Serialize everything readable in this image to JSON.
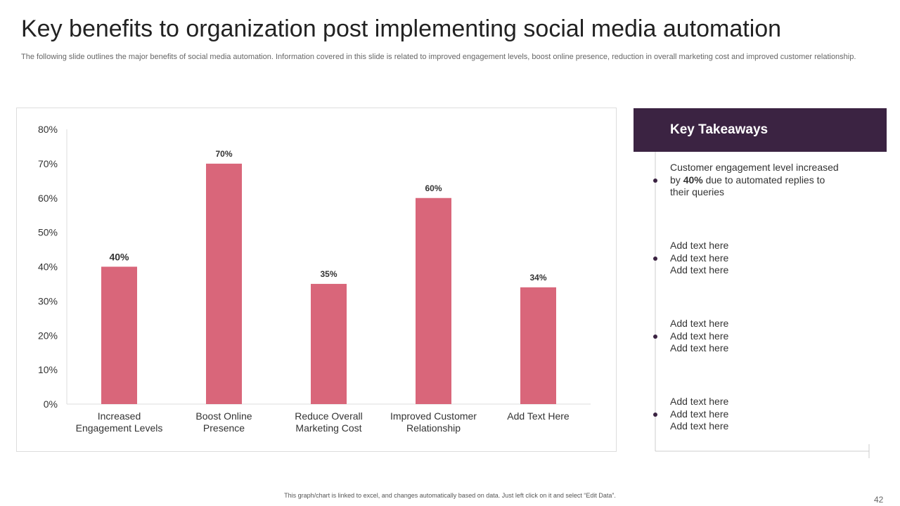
{
  "title": "Key benefits to organization post implementing social media automation",
  "subtitle": "The following slide outlines the major benefits of social media automation. Information covered in this slide is related to improved engagement levels, boost online presence, reduction in overall marketing cost and improved customer relationship.",
  "chart_data": {
    "type": "bar",
    "categories": [
      "Increased Engagement Levels",
      "Boost Online Presence",
      "Reduce Overall Marketing Cost",
      "Improved Customer Relationship",
      "Add Text Here"
    ],
    "values": [
      40,
      70,
      35,
      60,
      34
    ],
    "value_labels": [
      "40%",
      "70%",
      "35%",
      "60%",
      "34%"
    ],
    "color": "#d9667a",
    "ylim": [
      0,
      80
    ],
    "yticks": [
      {
        "value": 0,
        "label": "0%"
      },
      {
        "value": 10,
        "label": "10%"
      },
      {
        "value": 20,
        "label": "20%"
      },
      {
        "value": 30,
        "label": "30%"
      },
      {
        "value": 40,
        "label": "40%"
      },
      {
        "value": 50,
        "label": "50%"
      },
      {
        "value": 60,
        "label": "60%"
      },
      {
        "value": 70,
        "label": "70%"
      },
      {
        "value": 80,
        "label": "80%"
      }
    ]
  },
  "takeaways": {
    "heading": "Key Takeaways",
    "first": {
      "before": "Customer engagement level increased by",
      "bold": "40%",
      "after": "due to automated replies to their queries"
    },
    "items": [
      [
        "Add text here",
        "Add text here",
        "Add text here"
      ],
      [
        "Add text here",
        "Add text here",
        "Add text here"
      ],
      [
        "Add text here",
        "Add text here",
        "Add text here"
      ]
    ]
  },
  "footer": "This graph/chart is linked to excel, and changes automatically based on data. Just left click on it and select “Edit Data”.",
  "page_number": "42"
}
